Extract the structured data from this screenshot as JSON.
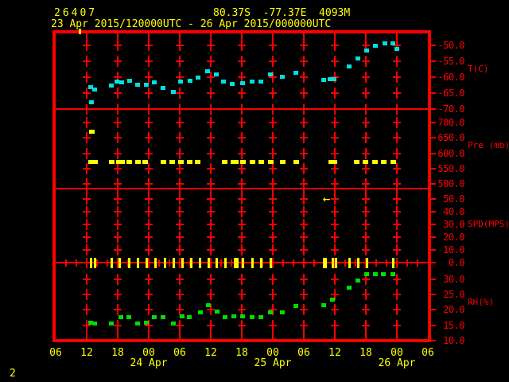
{
  "header": {
    "station_id": "26407",
    "location": "80.37S  -77.37E  4093M",
    "time_range": "23 Apr 2015/120000UTC - 26 Apr 2015/000000UTC"
  },
  "page_number": "2",
  "colors": {
    "background": "#000000",
    "grid_red": "#ff0000",
    "label_yellow": "#ffff00",
    "temperature_cyan": "#00e0e0",
    "pressure_yellow": "#ffff00",
    "wind_yellow": "#ffff00",
    "humidity_green": "#00dd00"
  },
  "chart_data": {
    "type": "scatter",
    "title": "Station meteogram, 4 stacked panels (T, Pressure, Wind Speed, RH) vs time",
    "x_axis": {
      "unit": "hours since 23 Apr 2015 00:00 UTC",
      "min": 6,
      "max": 78,
      "major_tick_hours": 6,
      "minor_tick_hours": 2,
      "hour_labels": [
        "06",
        "12",
        "18",
        "00",
        "06",
        "12",
        "18",
        "00",
        "06",
        "12",
        "18",
        "00",
        "06"
      ],
      "date_labels": [
        {
          "t": 24,
          "label": "24 Apr"
        },
        {
          "t": 48,
          "label": "25 Apr"
        },
        {
          "t": 72,
          "label": "26 Apr"
        }
      ]
    },
    "panels": [
      {
        "id": "temp",
        "unit_label": "T(C)",
        "tick_values": [
          -50,
          -55,
          -60,
          -65,
          -70
        ],
        "tick_labels": [
          "-50.0",
          "-55.0",
          "-60.0",
          "-65.0",
          "-70.0"
        ],
        "series": {
          "name": "temperature",
          "color": "#00e0e0",
          "points": [
            [
              12.7,
              -63.1
            ],
            [
              12.9,
              -67.9
            ],
            [
              13.5,
              -63.9
            ],
            [
              16.7,
              -62.6
            ],
            [
              17.8,
              -61.4
            ],
            [
              18.7,
              -61.6
            ],
            [
              20.3,
              -61.1
            ],
            [
              21.8,
              -62.4
            ],
            [
              23.5,
              -62.4
            ],
            [
              25.0,
              -61.6
            ],
            [
              26.8,
              -63.4
            ],
            [
              28.7,
              -64.6
            ],
            [
              30.2,
              -61.4
            ],
            [
              32.0,
              -61.1
            ],
            [
              33.6,
              -60.1
            ],
            [
              35.4,
              -58.1
            ],
            [
              37.1,
              -59.1
            ],
            [
              38.5,
              -61.4
            ],
            [
              40.2,
              -62.1
            ],
            [
              42.2,
              -61.9
            ],
            [
              44.0,
              -61.4
            ],
            [
              45.7,
              -61.4
            ],
            [
              47.5,
              -59.1
            ],
            [
              49.8,
              -59.8
            ],
            [
              52.4,
              -58.6
            ],
            [
              57.8,
              -60.9
            ],
            [
              59.0,
              -60.6
            ],
            [
              59.9,
              -60.6
            ],
            [
              62.7,
              -56.6
            ],
            [
              64.5,
              -54.1
            ],
            [
              66.2,
              -51.6
            ],
            [
              67.9,
              -50.1
            ],
            [
              69.7,
              -49.4
            ],
            [
              71.3,
              -49.4
            ],
            [
              72.0,
              -51.1
            ]
          ]
        }
      },
      {
        "id": "pre",
        "unit_label": "Pre (mb)",
        "tick_values": [
          700,
          650,
          600,
          550,
          500
        ],
        "tick_labels": [
          "700.0",
          "650.0",
          "600.0",
          "550.0",
          "500.0"
        ],
        "series": {
          "name": "pressure",
          "color": "#ffff00",
          "points": [
            [
              12.7,
              574
            ],
            [
              12.9,
              671
            ],
            [
              13.5,
              574
            ],
            [
              16.7,
              574
            ],
            [
              18.1,
              574
            ],
            [
              18.7,
              574
            ],
            [
              20.1,
              574
            ],
            [
              21.8,
              574
            ],
            [
              23.3,
              574
            ],
            [
              26.8,
              574
            ],
            [
              28.5,
              574
            ],
            [
              30.2,
              574
            ],
            [
              31.9,
              574
            ],
            [
              33.4,
              574
            ],
            [
              38.6,
              574
            ],
            [
              40.3,
              574
            ],
            [
              40.8,
              574
            ],
            [
              42.2,
              574
            ],
            [
              44.0,
              574
            ],
            [
              45.7,
              574
            ],
            [
              47.5,
              574
            ],
            [
              49.8,
              574
            ],
            [
              52.4,
              574
            ],
            [
              59.2,
              574
            ],
            [
              59.9,
              574
            ],
            [
              64.1,
              574
            ],
            [
              65.9,
              574
            ],
            [
              67.7,
              574
            ],
            [
              69.4,
              574
            ],
            [
              71.3,
              574
            ]
          ]
        }
      },
      {
        "id": "spd",
        "unit_label": "SPD(MPS)",
        "tick_values": [
          50,
          40,
          30,
          20,
          10,
          0
        ],
        "tick_labels": [
          "50.0",
          "40.0",
          "30.0",
          "20.0",
          "10.0",
          "0.0"
        ],
        "series": {
          "name": "wind_speed",
          "color": "#ffff00",
          "points": [
            [
              12.7,
              0
            ],
            [
              13.5,
              0
            ],
            [
              16.8,
              0
            ],
            [
              18.3,
              0
            ],
            [
              20.2,
              0
            ],
            [
              21.9,
              0
            ],
            [
              23.6,
              0
            ],
            [
              25.3,
              0
            ],
            [
              27.0,
              0
            ],
            [
              28.7,
              0
            ],
            [
              30.4,
              0
            ],
            [
              32.1,
              0
            ],
            [
              33.8,
              0
            ],
            [
              35.5,
              0
            ],
            [
              37.1,
              0
            ],
            [
              38.8,
              0
            ],
            [
              40.6,
              0
            ],
            [
              41.1,
              0
            ],
            [
              42.2,
              0
            ],
            [
              44.0,
              0
            ],
            [
              45.7,
              0
            ],
            [
              47.5,
              0
            ],
            [
              57.8,
              0
            ],
            [
              58.2,
              0
            ],
            [
              59.5,
              0
            ],
            [
              60.1,
              0
            ],
            [
              62.8,
              0
            ],
            [
              64.4,
              0
            ],
            [
              66.2,
              0
            ],
            [
              71.3,
              0
            ]
          ]
        }
      },
      {
        "id": "rh",
        "unit_label": "RH(%)",
        "tick_values": [
          30,
          25,
          20,
          15,
          10
        ],
        "tick_labels": [
          "30.0",
          "25.0",
          "20.0",
          "15.0",
          "10.0"
        ],
        "series": {
          "name": "relative_humidity",
          "color": "#00dd00",
          "points": [
            [
              12.7,
              15.9
            ],
            [
              13.5,
              15.7
            ],
            [
              16.7,
              15.7
            ],
            [
              18.6,
              17.8
            ],
            [
              20.2,
              17.8
            ],
            [
              21.9,
              15.7
            ],
            [
              23.5,
              15.9
            ],
            [
              25.1,
              17.8
            ],
            [
              26.8,
              17.8
            ],
            [
              28.7,
              15.7
            ],
            [
              30.4,
              18.0
            ],
            [
              31.9,
              17.8
            ],
            [
              34.0,
              19.3
            ],
            [
              35.6,
              21.7
            ],
            [
              37.2,
              19.6
            ],
            [
              38.8,
              17.8
            ],
            [
              40.5,
              18.0
            ],
            [
              42.2,
              18.0
            ],
            [
              44.0,
              17.8
            ],
            [
              45.7,
              17.8
            ],
            [
              47.5,
              19.3
            ],
            [
              49.8,
              19.3
            ],
            [
              52.4,
              21.4
            ],
            [
              57.8,
              21.7
            ],
            [
              59.5,
              23.5
            ],
            [
              62.8,
              27.4
            ],
            [
              64.4,
              29.7
            ],
            [
              66.2,
              31.8
            ],
            [
              67.9,
              31.8
            ],
            [
              69.4,
              31.8
            ],
            [
              71.3,
              31.8
            ]
          ]
        }
      }
    ],
    "annotations": [
      {
        "name": "wind-direction-arrow",
        "symbol": "←",
        "t": 58.4,
        "panel": "spd",
        "value": 50
      },
      {
        "name": "top-edge-tick",
        "t": 10.6
      }
    ]
  }
}
